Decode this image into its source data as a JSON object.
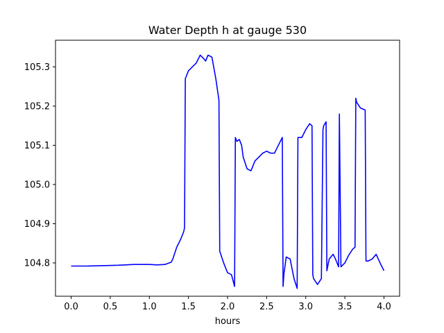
{
  "chart_data": {
    "type": "line",
    "title": "Water Depth h at gauge 530",
    "xlabel": "hours",
    "ylabel": "",
    "xlim": [
      -0.2,
      4.2
    ],
    "ylim": [
      104.715,
      105.368
    ],
    "grid": false,
    "x_ticks": [
      {
        "value": 0.0,
        "label": "0.0"
      },
      {
        "value": 0.5,
        "label": "0.5"
      },
      {
        "value": 1.0,
        "label": "1.0"
      },
      {
        "value": 1.5,
        "label": "1.5"
      },
      {
        "value": 2.0,
        "label": "2.0"
      },
      {
        "value": 2.5,
        "label": "2.5"
      },
      {
        "value": 3.0,
        "label": "3.0"
      },
      {
        "value": 3.5,
        "label": "3.5"
      },
      {
        "value": 4.0,
        "label": "4.0"
      }
    ],
    "y_ticks": [
      {
        "value": 104.8,
        "label": "104.8"
      },
      {
        "value": 104.9,
        "label": "104.9"
      },
      {
        "value": 105.0,
        "label": "105.0"
      },
      {
        "value": 105.1,
        "label": "105.1"
      },
      {
        "value": 105.2,
        "label": "105.2"
      },
      {
        "value": 105.3,
        "label": "105.3"
      }
    ],
    "series": [
      {
        "color": "#0000ff",
        "x": [
          0.0,
          0.2,
          0.4,
          0.6,
          0.7,
          0.8,
          0.9,
          1.0,
          1.1,
          1.2,
          1.28,
          1.3,
          1.35,
          1.4,
          1.44,
          1.45,
          1.46,
          1.5,
          1.55,
          1.6,
          1.65,
          1.7,
          1.72,
          1.75,
          1.8,
          1.85,
          1.89,
          1.9,
          1.95,
          2.0,
          2.05,
          2.09,
          2.1,
          2.12,
          2.15,
          2.18,
          2.2,
          2.25,
          2.3,
          2.35,
          2.4,
          2.45,
          2.5,
          2.55,
          2.6,
          2.65,
          2.7,
          2.71,
          2.72,
          2.75,
          2.8,
          2.85,
          2.89,
          2.9,
          2.95,
          3.0,
          3.05,
          3.08,
          3.09,
          3.1,
          3.15,
          3.2,
          3.22,
          3.23,
          3.26,
          3.27,
          3.28,
          3.3,
          3.35,
          3.38,
          3.42,
          3.43,
          3.45,
          3.5,
          3.55,
          3.6,
          3.63,
          3.64,
          3.65,
          3.7,
          3.76,
          3.77,
          3.8,
          3.85,
          3.9,
          3.95,
          4.0
        ],
        "y": [
          104.792,
          104.792,
          104.793,
          104.794,
          104.795,
          104.796,
          104.796,
          104.796,
          104.795,
          104.796,
          104.802,
          104.81,
          104.84,
          104.86,
          104.88,
          104.89,
          105.27,
          105.29,
          105.3,
          105.31,
          105.33,
          105.32,
          105.315,
          105.33,
          105.325,
          105.27,
          105.215,
          104.83,
          104.8,
          104.775,
          104.77,
          104.74,
          105.12,
          105.11,
          105.115,
          105.1,
          105.07,
          105.04,
          105.035,
          105.06,
          105.07,
          105.08,
          105.085,
          105.08,
          105.08,
          105.1,
          105.12,
          104.74,
          104.77,
          104.815,
          104.81,
          104.76,
          104.735,
          105.12,
          105.12,
          105.14,
          105.155,
          105.15,
          104.77,
          104.76,
          104.745,
          104.76,
          105.14,
          105.15,
          105.16,
          104.78,
          104.79,
          104.81,
          104.822,
          104.81,
          104.79,
          105.18,
          104.79,
          104.8,
          104.82,
          104.835,
          104.84,
          105.22,
          105.21,
          105.195,
          105.19,
          104.805,
          104.805,
          104.81,
          104.822,
          104.8,
          104.78
        ]
      }
    ]
  }
}
